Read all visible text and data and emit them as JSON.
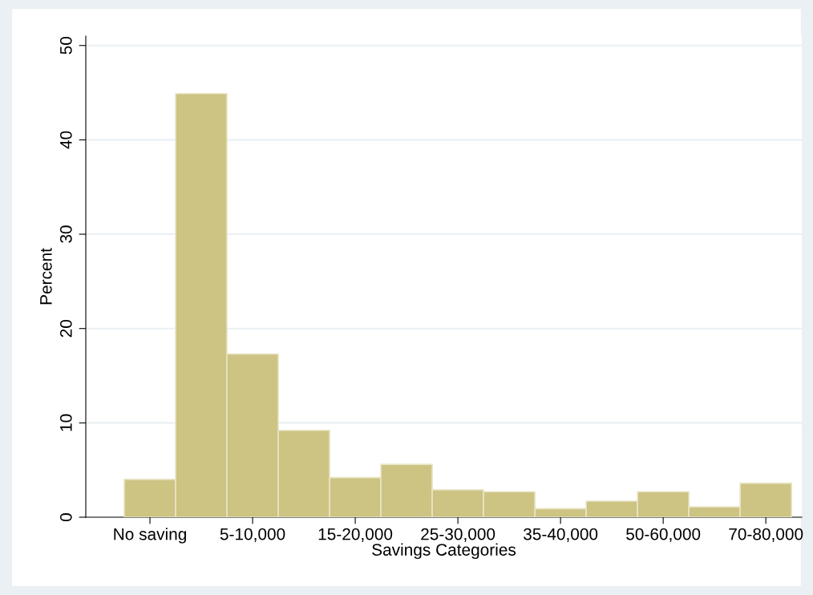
{
  "chart_data": {
    "type": "bar",
    "xlabel": "Savings Categories",
    "ylabel": "Percent",
    "categories": [
      "No saving",
      null,
      "5-10,000",
      null,
      "15-20,000",
      null,
      "25-30,000",
      null,
      "35-40,000",
      null,
      "50-60,000",
      null,
      "70-80,000"
    ],
    "values": [
      4.0,
      44.9,
      17.3,
      9.2,
      4.2,
      5.6,
      2.9,
      2.7,
      0.9,
      1.7,
      2.7,
      1.1,
      3.6
    ],
    "color": "#cdc383",
    "ylim": [
      0,
      51
    ],
    "yticks": [
      0,
      10,
      20,
      30,
      40,
      50
    ],
    "grid": "y"
  }
}
